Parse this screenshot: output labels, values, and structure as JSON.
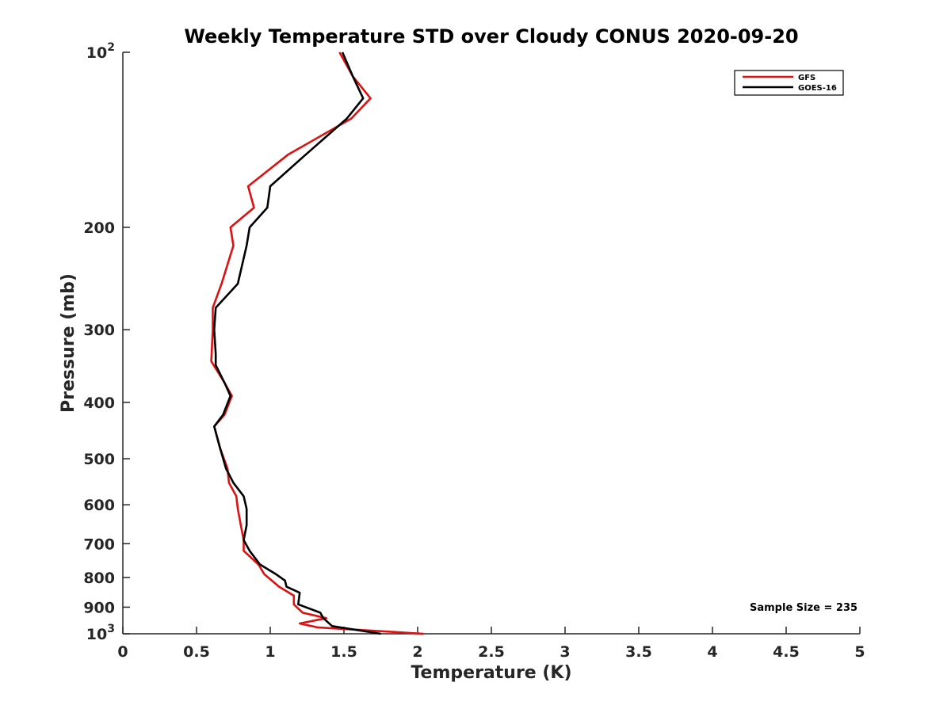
{
  "chart_data": {
    "type": "line",
    "title": "Weekly Temperature STD over Cloudy CONUS 2020-09-20",
    "xlabel": "Temperature (K)",
    "ylabel": "Pressure (mb)",
    "xlim": [
      0,
      5
    ],
    "ylim": [
      100,
      1000
    ],
    "y_scale": "log",
    "y_reversed": true,
    "x_ticks": [
      "0",
      "0.5",
      "1",
      "1.5",
      "2",
      "2.5",
      "3",
      "3.5",
      "4",
      "4.5",
      "5"
    ],
    "y_ticks": [
      {
        "value": 100,
        "base": "10",
        "exp": "2"
      },
      {
        "value": 200,
        "label": "200"
      },
      {
        "value": 300,
        "label": "300"
      },
      {
        "value": 400,
        "label": "400"
      },
      {
        "value": 500,
        "label": "500"
      },
      {
        "value": 600,
        "label": "600"
      },
      {
        "value": 700,
        "label": "700"
      },
      {
        "value": 800,
        "label": "800"
      },
      {
        "value": 900,
        "label": "900"
      },
      {
        "value": 1000,
        "base": "10",
        "exp": "3"
      }
    ],
    "grid": false,
    "legend_position": "top-right",
    "annotation": "Sample Size = 235",
    "series": [
      {
        "name": "GFS",
        "color": "#dd1111",
        "x": [
          1.47,
          1.56,
          1.68,
          1.55,
          1.12,
          0.85,
          0.89,
          0.73,
          0.75,
          0.67,
          0.61,
          0.61,
          0.6,
          0.69,
          0.74,
          0.69,
          0.62,
          0.66,
          0.71,
          0.72,
          0.77,
          0.78,
          0.8,
          0.82,
          0.82,
          0.92,
          0.96,
          1.06,
          1.16,
          1.16,
          1.22,
          1.38,
          1.2,
          1.32,
          2.04
        ],
        "y": [
          100,
          110,
          120,
          130,
          150,
          170,
          185,
          200,
          215,
          250,
          275,
          300,
          340,
          370,
          390,
          420,
          440,
          480,
          520,
          550,
          580,
          610,
          650,
          690,
          720,
          760,
          790,
          830,
          860,
          890,
          920,
          940,
          960,
          975,
          1000
        ]
      },
      {
        "name": "GOES-16",
        "color": "#000000",
        "x": [
          1.49,
          1.56,
          1.63,
          1.52,
          1.24,
          1.0,
          0.98,
          0.86,
          0.84,
          0.78,
          0.63,
          0.62,
          0.63,
          0.63,
          0.69,
          0.73,
          0.68,
          0.62,
          0.66,
          0.7,
          0.75,
          0.82,
          0.84,
          0.84,
          0.82,
          0.86,
          0.93,
          1.04,
          1.1,
          1.11,
          1.2,
          1.19,
          1.34,
          1.36,
          1.42,
          1.75
        ],
        "y": [
          100,
          110,
          120,
          130,
          150,
          170,
          185,
          200,
          215,
          250,
          275,
          300,
          330,
          345,
          370,
          390,
          420,
          440,
          480,
          520,
          550,
          580,
          610,
          650,
          690,
          720,
          760,
          790,
          810,
          830,
          850,
          890,
          920,
          940,
          970,
          1000
        ]
      }
    ]
  }
}
